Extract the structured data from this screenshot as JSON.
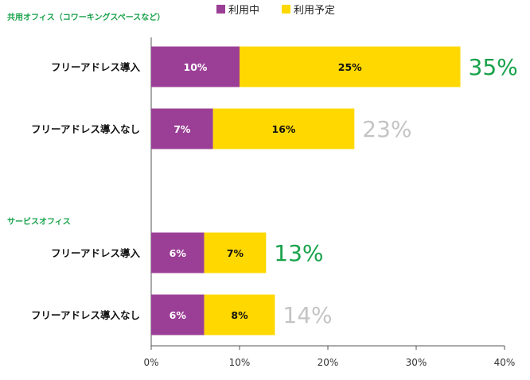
{
  "legend": {
    "in_use": {
      "label": "利用中",
      "color": "#9b3f96"
    },
    "planned": {
      "label": "利用予定",
      "color": "#ffd800"
    }
  },
  "groups": {
    "coworking": {
      "label": "共用オフィス（コワーキングスペースなど）"
    },
    "serviced": {
      "label": "サービスオフィス"
    }
  },
  "colors": {
    "total_highlight": "#18a24a",
    "total_muted": "#c4c4c4",
    "axis": "#555555"
  },
  "chart_data": {
    "type": "bar",
    "orientation": "horizontal",
    "stacked": true,
    "xlim": [
      0,
      40
    ],
    "x_ticks": [
      "0%",
      "10%",
      "20%",
      "30%",
      "40%"
    ],
    "rows": [
      {
        "group": "共用オフィス（コワーキングスペースなど）",
        "category": "フリーアドレス導入",
        "in_use": 10,
        "planned": 25,
        "in_use_label": "10%",
        "planned_label": "25%",
        "total_label": "35%",
        "total_style": "highlight"
      },
      {
        "group": "共用オフィス（コワーキングスペースなど）",
        "category": "フリーアドレス導入なし",
        "in_use": 7,
        "planned": 16,
        "in_use_label": "7%",
        "planned_label": "16%",
        "total_label": "23%",
        "total_style": "muted"
      },
      {
        "group": "サービスオフィス",
        "category": "フリーアドレス導入",
        "in_use": 6,
        "planned": 7,
        "in_use_label": "6%",
        "planned_label": "7%",
        "total_label": "13%",
        "total_style": "highlight"
      },
      {
        "group": "サービスオフィス",
        "category": "フリーアドレス導入なし",
        "in_use": 6,
        "planned": 8,
        "in_use_label": "6%",
        "planned_label": "8%",
        "total_label": "14%",
        "total_style": "muted"
      }
    ]
  }
}
